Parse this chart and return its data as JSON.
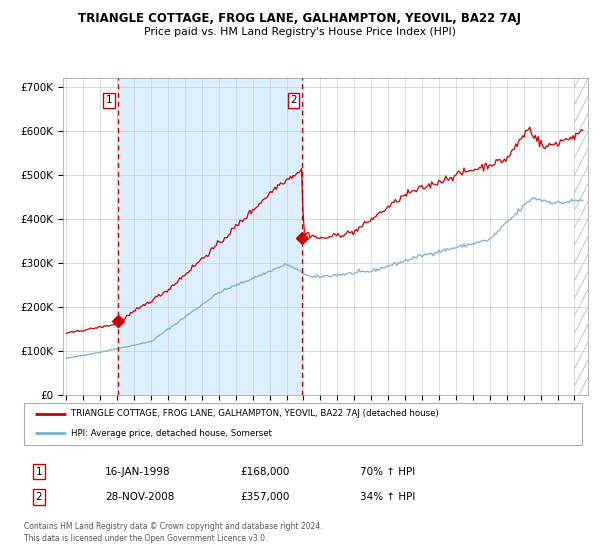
{
  "title": "TRIANGLE COTTAGE, FROG LANE, GALHAMPTON, YEOVIL, BA22 7AJ",
  "subtitle": "Price paid vs. HM Land Registry's House Price Index (HPI)",
  "legend_line1": "TRIANGLE COTTAGE, FROG LANE, GALHAMPTON, YEOVIL, BA22 7AJ (detached house)",
  "legend_line2": "HPI: Average price, detached house, Somerset",
  "table_row1_num": "1",
  "table_row1_date": "16-JAN-1998",
  "table_row1_price": "£168,000",
  "table_row1_hpi": "70% ↑ HPI",
  "table_row2_num": "2",
  "table_row2_date": "28-NOV-2008",
  "table_row2_price": "£357,000",
  "table_row2_hpi": "34% ↑ HPI",
  "footer": "Contains HM Land Registry data © Crown copyright and database right 2024.\nThis data is licensed under the Open Government Licence v3.0.",
  "red_color": "#cc0000",
  "blue_color": "#7ab0d4",
  "bg_color": "#ddeeff",
  "sale1_x": 1998.04,
  "sale1_y": 168000,
  "sale2_x": 2008.91,
  "sale2_y": 357000,
  "vline1_x": 1998.04,
  "vline2_x": 2008.91,
  "ylim": [
    0,
    720000
  ],
  "xlim_start": 1994.8,
  "xlim_end": 2025.8,
  "xtick_start": 1995,
  "xtick_end": 2025
}
